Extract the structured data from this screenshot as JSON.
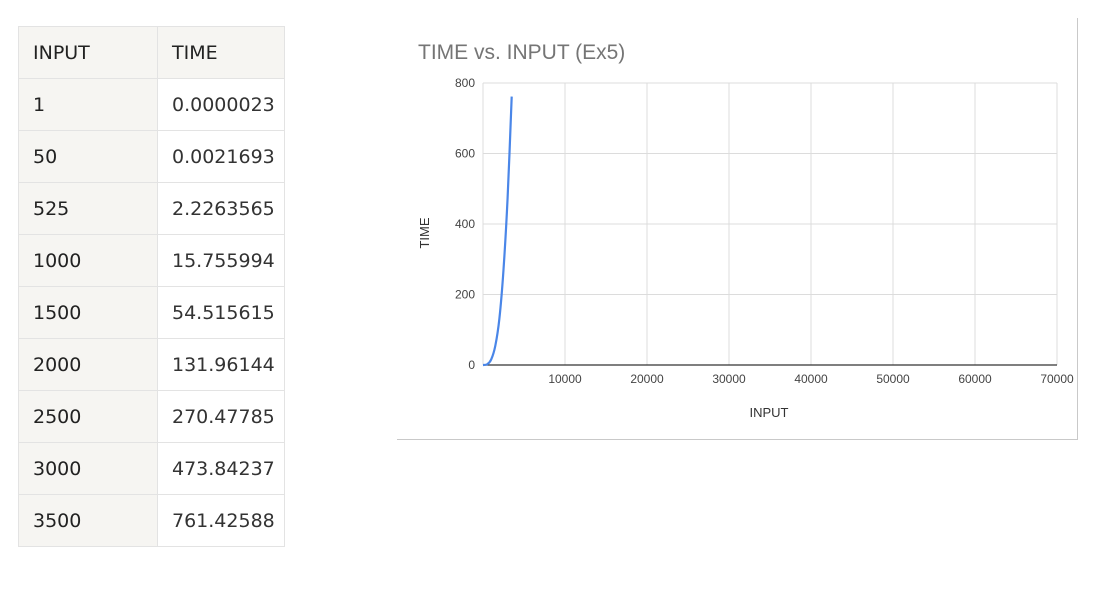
{
  "table": {
    "headers": [
      "INPUT",
      "TIME"
    ],
    "rows": [
      [
        "1",
        "0.0000023"
      ],
      [
        "50",
        "0.0021693"
      ],
      [
        "525",
        "2.2263565"
      ],
      [
        "1000",
        "15.755994"
      ],
      [
        "1500",
        "54.515615"
      ],
      [
        "2000",
        "131.96144"
      ],
      [
        "2500",
        "270.47785"
      ],
      [
        "3000",
        "473.84237"
      ],
      [
        "3500",
        "761.42588"
      ]
    ]
  },
  "chart_data": {
    "type": "line",
    "title": "TIME vs. INPUT (Ex5)",
    "xlabel": "INPUT",
    "ylabel": "TIME",
    "x": [
      1,
      50,
      525,
      1000,
      1500,
      2000,
      2500,
      3000,
      3500
    ],
    "series": [
      {
        "values": [
          2.3e-06,
          0.0021693,
          2.2263565,
          15.755994,
          54.515615,
          131.96144,
          270.47785,
          473.84237,
          761.42588
        ],
        "color": "#4a86e8"
      }
    ],
    "xlim": [
      0,
      70000
    ],
    "ylim": [
      0,
      800
    ],
    "xticks": [
      "10000",
      "20000",
      "30000",
      "40000",
      "50000",
      "60000",
      "70000"
    ],
    "yticks": [
      "0",
      "200",
      "400",
      "600",
      "800"
    ],
    "grid": true,
    "legend": "none"
  }
}
